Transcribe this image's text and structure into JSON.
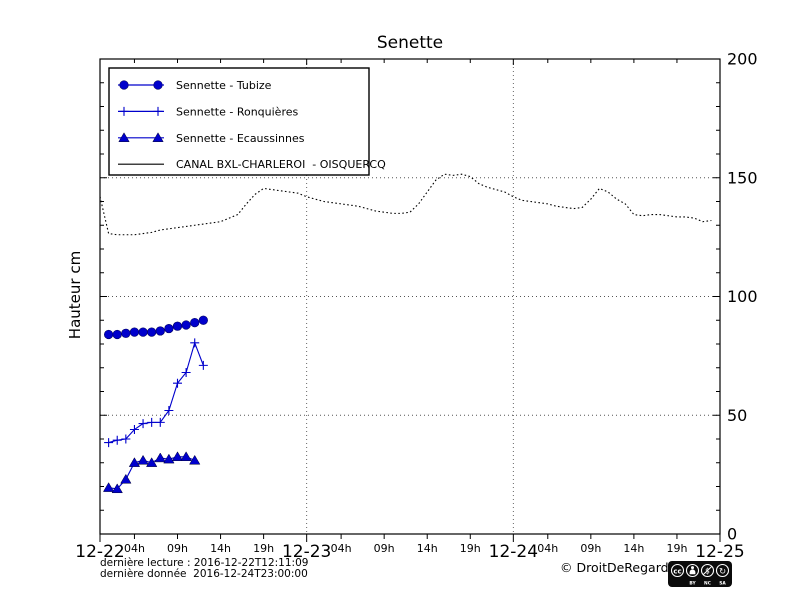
{
  "chart_data": {
    "type": "line",
    "title": "Senette",
    "ylabel": "Hauteur cm",
    "ylim": [
      0,
      200
    ],
    "yticks": [
      0,
      50,
      100,
      150,
      200
    ],
    "grid": {
      "horizontal_at": [
        50,
        100,
        150
      ],
      "vertical_at_hours": [
        24,
        48
      ]
    },
    "x_axis": {
      "date_labels": [
        "12-22",
        "12-23",
        "12-24",
        "12-25"
      ],
      "date_hours": [
        0,
        24,
        48,
        72
      ],
      "hour_labels": [
        "04h",
        "09h",
        "14h",
        "19h"
      ],
      "hour_offsets": [
        4,
        9,
        14,
        19
      ],
      "days_with_hour_labels": [
        0,
        1,
        2
      ]
    },
    "legend_position": "upper-left",
    "series": [
      {
        "name": "Sennette - Tubize",
        "color": "#0000cc",
        "marker": "circle",
        "line_style": "solid",
        "x_hours_start": 1,
        "x_hours_step": 1,
        "values": [
          84,
          84,
          84.5,
          85,
          85,
          85,
          85.5,
          86.5,
          87.5,
          88,
          89,
          90
        ]
      },
      {
        "name": "Sennette - Ronquières",
        "color": "#0000cc",
        "marker": "plus",
        "line_style": "solid",
        "x_hours_start": 1,
        "x_hours_step": 1,
        "values": [
          38.5,
          39.5,
          40,
          44,
          46.5,
          47,
          47,
          52,
          63.5,
          68,
          80.5,
          71
        ]
      },
      {
        "name": "Sennette - Ecaussinnes",
        "color": "#0000cc",
        "marker": "triangle",
        "line_style": "solid",
        "x_hours_start": 1,
        "x_hours_step": 1,
        "values": [
          19.5,
          19,
          23,
          30,
          31,
          30,
          32,
          31.5,
          32.5,
          32.5,
          31
        ]
      },
      {
        "name": "CANAL BXL-CHARLEROI  - OISQUERCQ",
        "color": "#000000",
        "marker": "none",
        "line_style": "dotted",
        "x_hours_start": 0,
        "x_hours_step": 1,
        "values": [
          142,
          126.5,
          126,
          126,
          126,
          126.5,
          127,
          128,
          128.5,
          129,
          129.5,
          130,
          130.5,
          131,
          131.5,
          133,
          134.5,
          139,
          143,
          145.5,
          145,
          144.5,
          144,
          143.5,
          142,
          141,
          140,
          139.5,
          139,
          138.5,
          138,
          137,
          136,
          135.5,
          135,
          135,
          135.5,
          139,
          144,
          149,
          151.5,
          151,
          151.5,
          150.5,
          147.5,
          146,
          145,
          144,
          142,
          140.5,
          140,
          139.5,
          139,
          138,
          137.5,
          137,
          137.5,
          141,
          145.5,
          144,
          141,
          139,
          134.5,
          134,
          134.5,
          134.5,
          134,
          133.5,
          133.5,
          133,
          131.5,
          132
        ]
      }
    ]
  },
  "footer": {
    "derniere_lecture": "dernière lecture : 2016-12-22T12:11:09",
    "derniere_donnee": "dernière donnée  2016-12-24T23:00:00",
    "copyright": "© DroitDeRegard.be",
    "license": {
      "name": "CC BY-NC-SA",
      "cc_label": "cc",
      "nc_glyph": "$",
      "sa_glyph": "↻",
      "parts": [
        "BY",
        "NC",
        "SA"
      ]
    }
  },
  "colors": {
    "series_blue": "#0000cc",
    "axis_black": "#000000",
    "grid_gray": "#555555"
  }
}
